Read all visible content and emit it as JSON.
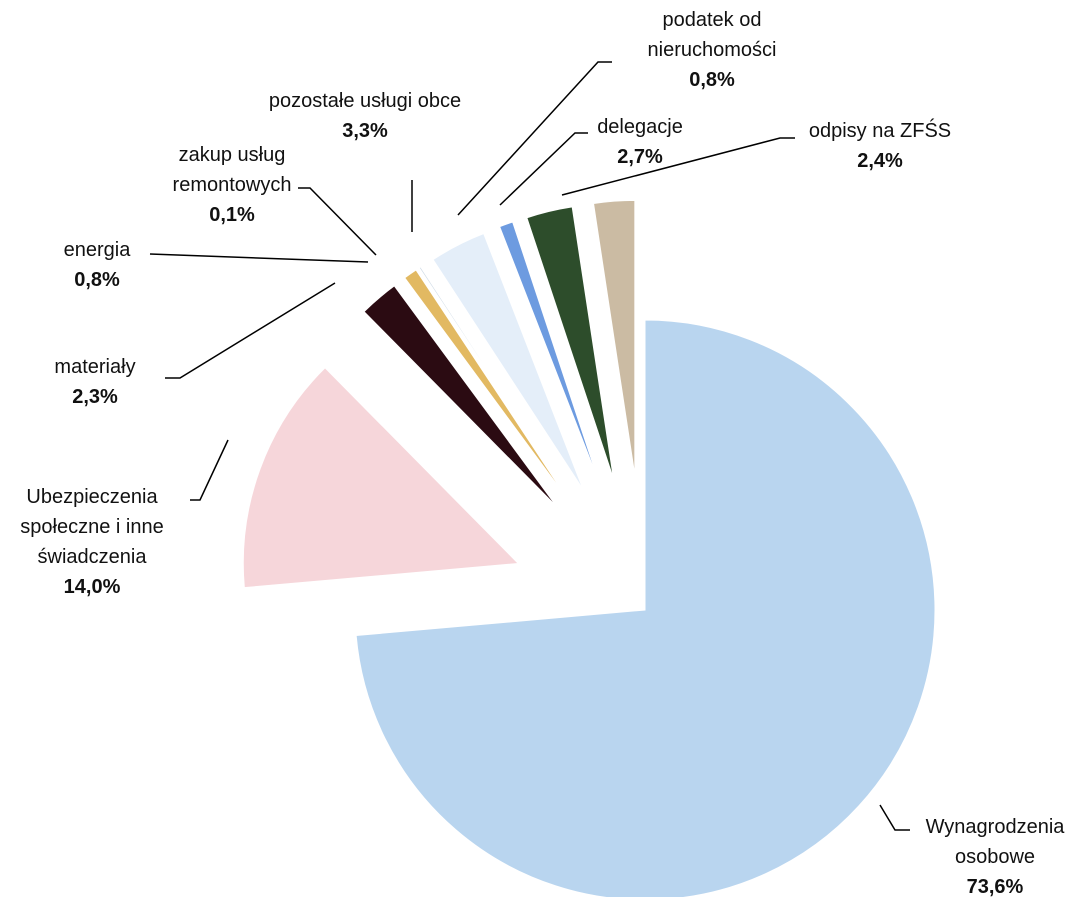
{
  "chart_data": {
    "type": "pie",
    "categories": [
      "Wynagrodzenia osobowe",
      "Ubezpieczenia społeczne i inne świadczenia",
      "materiały",
      "energia",
      "zakup usług remontowych",
      "pozostałe usługi obce",
      "podatek od nieruchomości",
      "delegacje",
      "odpisy na ZFŚS"
    ],
    "values": [
      73.6,
      14.0,
      2.3,
      0.8,
      0.1,
      3.3,
      0.8,
      2.7,
      2.4
    ],
    "value_labels": [
      "73,6%",
      "14,0%",
      "2,3%",
      "0,8%",
      "0,1%",
      "3,3%",
      "0,8%",
      "2,7%",
      "2,4%"
    ],
    "colors": [
      "#b9d5ef",
      "#f6d6da",
      "#2b0b12",
      "#e2b962",
      "#cfdbe6",
      "#e4eef9",
      "#6d9be0",
      "#2d4d2b",
      "#cbbba3"
    ]
  }
}
